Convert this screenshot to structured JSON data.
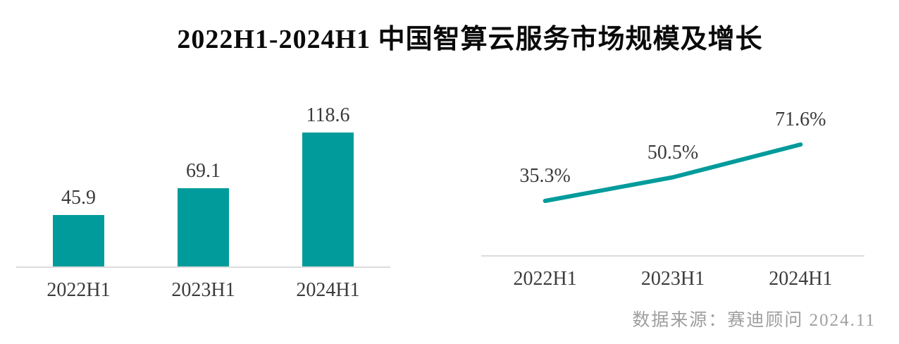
{
  "title": "2022H1-2024H1 中国智算云服务市场规模及增长",
  "source_note": "数据来源：赛迪顾问  2024.11",
  "colors": {
    "accent_teal": "#019b9b",
    "axis_gray": "#dcdcdc",
    "label_dark": "#3b3b3e",
    "source_gray": "#9e9e9e",
    "title_black": "#0a0a0a"
  },
  "chart_data": [
    {
      "type": "bar",
      "name": "market-size-bars",
      "categories": [
        "2022H1",
        "2023H1",
        "2024H1"
      ],
      "values": [
        45.9,
        69.1,
        118.6
      ],
      "data_labels": [
        "45.9",
        "69.1",
        "118.6"
      ],
      "title": "",
      "xlabel": "",
      "ylabel": "",
      "ylim": [
        0,
        145
      ],
      "grid": false,
      "legend_position": "none",
      "bar_color": "#019b9b"
    },
    {
      "type": "line",
      "name": "growth-rate-line",
      "categories": [
        "2022H1",
        "2023H1",
        "2024H1"
      ],
      "values": [
        35.3,
        50.5,
        71.6
      ],
      "data_labels": [
        "35.3%",
        "50.5%",
        "71.6%"
      ],
      "title": "",
      "xlabel": "",
      "ylabel": "",
      "ylim": [
        0,
        100
      ],
      "grid": false,
      "legend_position": "none",
      "line_color": "#019b9b"
    }
  ]
}
